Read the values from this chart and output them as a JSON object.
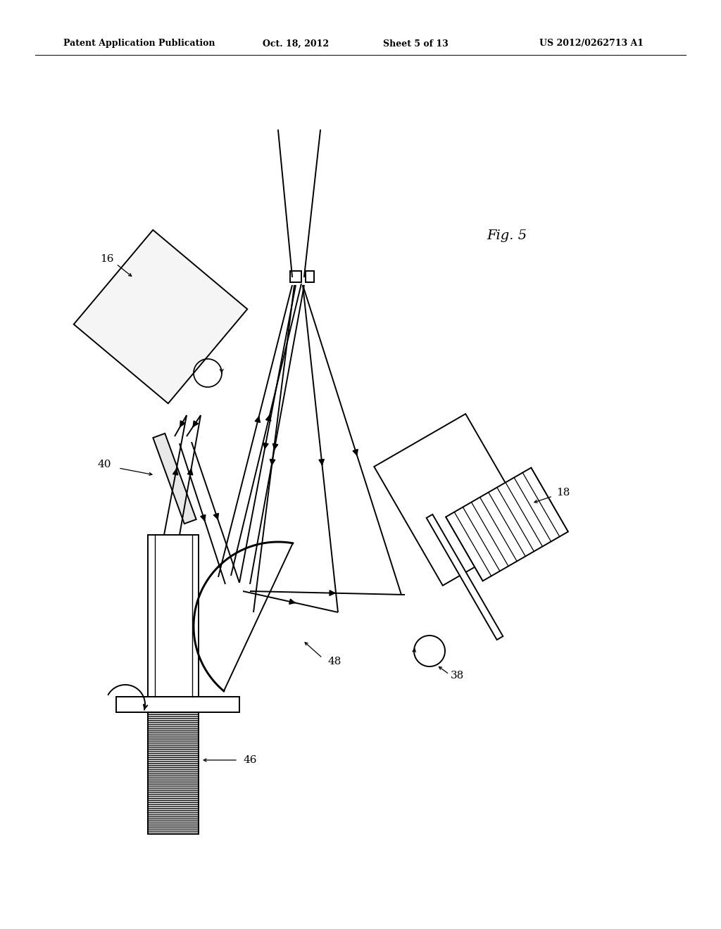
{
  "bg_color": "#ffffff",
  "header_text": "Patent Application Publication",
  "header_date": "Oct. 18, 2012",
  "header_sheet": "Sheet 5 of 13",
  "header_patent": "US 2012/0262713 A1",
  "fig_label": "Fig. 5",
  "line_color": "#000000"
}
